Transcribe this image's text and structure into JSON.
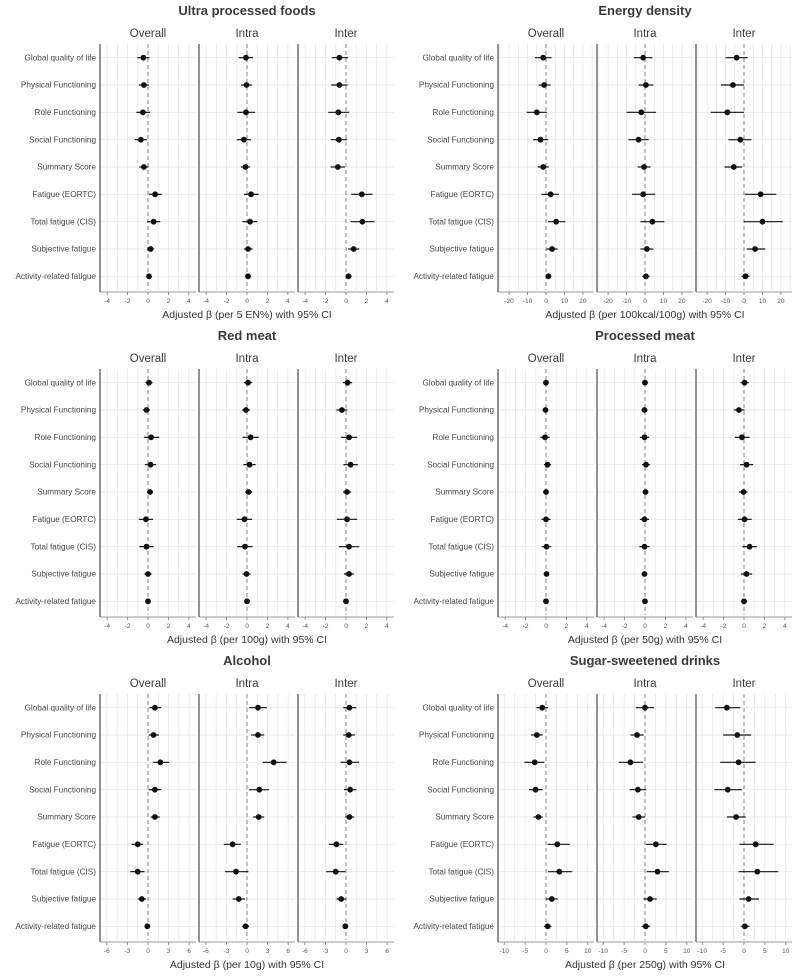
{
  "page": {
    "background": "#ffffff"
  },
  "categories": [
    "Global quality of life",
    "Physical Functioning",
    "Role Functioning",
    "Social Functioning",
    "Summary Score",
    "Fatigue (EORTC)",
    "Total fatigue (CIS)",
    "Subjective fatigue",
    "Activity-related fatigue"
  ],
  "panel_names": [
    "Overall",
    "Intra",
    "Inter"
  ],
  "colors": {
    "point": "#111111",
    "ci_line": "#111111",
    "grid": "#e3e3e3",
    "zero_line": "#8c8c8c",
    "spine": "#4a4a4a",
    "axis": "#777777",
    "text": "#3b3b3b",
    "tick_text": "#555555"
  },
  "chart_data": [
    {
      "type": "scatter",
      "subtype": "forest-plot",
      "title": "Ultra processed foods",
      "xlabel": "Adjusted β (per 5 EN%) with 95% CI",
      "xlim": [
        -4.7,
        4.7
      ],
      "xticks": [
        -4,
        -2,
        0,
        2,
        4
      ],
      "minor_step": 1,
      "zero_line": 0,
      "panels": [
        {
          "name": "Overall",
          "rows": [
            [
              -0.45,
              -1.05,
              0.15
            ],
            [
              -0.4,
              -0.9,
              0.1
            ],
            [
              -0.5,
              -1.15,
              0.2
            ],
            [
              -0.7,
              -1.3,
              -0.1
            ],
            [
              -0.4,
              -0.85,
              0.05
            ],
            [
              0.7,
              0.1,
              1.35
            ],
            [
              0.55,
              -0.1,
              1.2
            ],
            [
              0.25,
              -0.1,
              0.6
            ],
            [
              0.1,
              -0.1,
              0.3
            ]
          ]
        },
        {
          "name": "Intra",
          "rows": [
            [
              -0.1,
              -0.8,
              0.6
            ],
            [
              -0.05,
              -0.6,
              0.5
            ],
            [
              -0.1,
              -0.95,
              0.8
            ],
            [
              -0.3,
              -1.0,
              0.4
            ],
            [
              -0.15,
              -0.6,
              0.3
            ],
            [
              0.4,
              -0.3,
              1.15
            ],
            [
              0.3,
              -0.45,
              1.0
            ],
            [
              0.1,
              -0.3,
              0.55
            ],
            [
              0.1,
              -0.15,
              0.3
            ]
          ]
        },
        {
          "name": "Inter",
          "rows": [
            [
              -0.65,
              -1.4,
              0.2
            ],
            [
              -0.65,
              -1.45,
              0.15
            ],
            [
              -0.75,
              -1.75,
              0.3
            ],
            [
              -0.7,
              -1.5,
              0.1
            ],
            [
              -0.8,
              -1.5,
              -0.1
            ],
            [
              1.55,
              0.5,
              2.6
            ],
            [
              1.6,
              0.45,
              2.8
            ],
            [
              0.75,
              0.2,
              1.3
            ],
            [
              0.25,
              -0.05,
              0.55
            ]
          ]
        }
      ]
    },
    {
      "type": "scatter",
      "subtype": "forest-plot",
      "title": "Energy density",
      "xlabel": "Adjusted β (per 100kcal/100g) with 95% CI",
      "xlim": [
        -26,
        26
      ],
      "xticks": [
        -20,
        -10,
        0,
        10,
        20
      ],
      "minor_step": 5,
      "zero_line": 0,
      "panels": [
        {
          "name": "Overall",
          "rows": [
            [
              -1.5,
              -6,
              3
            ],
            [
              -1,
              -4,
              2.5
            ],
            [
              -5,
              -10.5,
              0.5
            ],
            [
              -3,
              -7,
              1.2
            ],
            [
              -1.5,
              -4.5,
              1.5
            ],
            [
              2.5,
              -2.5,
              7
            ],
            [
              5.5,
              1,
              10.5
            ],
            [
              3.3,
              0.3,
              6.3
            ],
            [
              1.3,
              0,
              2.8
            ]
          ]
        },
        {
          "name": "Intra",
          "rows": [
            [
              -1,
              -6,
              4
            ],
            [
              0.5,
              -3.5,
              4.5
            ],
            [
              -2,
              -10,
              6
            ],
            [
              -3.5,
              -9,
              2
            ],
            [
              -0.5,
              -4,
              3
            ],
            [
              -1,
              -7,
              5.5
            ],
            [
              4,
              -2.5,
              10.5
            ],
            [
              1,
              -2.5,
              4.5
            ],
            [
              0.5,
              -1.5,
              2.5
            ]
          ]
        },
        {
          "name": "Inter",
          "rows": [
            [
              -4,
              -10,
              2
            ],
            [
              -6,
              -12.5,
              0
            ],
            [
              -9,
              -18,
              0
            ],
            [
              -2,
              -8.5,
              4
            ],
            [
              -5.5,
              -10.5,
              -1
            ],
            [
              9,
              0.5,
              17.5
            ],
            [
              10,
              0,
              21
            ],
            [
              6,
              1.5,
              11.5
            ],
            [
              0.8,
              -1.3,
              3
            ]
          ]
        }
      ]
    },
    {
      "type": "scatter",
      "subtype": "forest-plot",
      "title": "Red meat",
      "xlabel": "Adjusted β (per 100g) with 95% CI",
      "xlim": [
        -4.7,
        4.7
      ],
      "xticks": [
        -4,
        -2,
        0,
        2,
        4
      ],
      "minor_step": 1,
      "zero_line": 0,
      "panels": [
        {
          "name": "Overall",
          "rows": [
            [
              0.1,
              -0.25,
              0.45
            ],
            [
              -0.15,
              -0.5,
              0.2
            ],
            [
              0.3,
              -0.4,
              1.1
            ],
            [
              0.25,
              -0.3,
              0.8
            ],
            [
              0.2,
              -0.1,
              0.5
            ],
            [
              -0.2,
              -0.9,
              0.5
            ],
            [
              -0.15,
              -0.85,
              0.55
            ],
            [
              0,
              -0.35,
              0.35
            ],
            [
              0,
              -0.2,
              0.2
            ]
          ]
        },
        {
          "name": "Intra",
          "rows": [
            [
              0.1,
              -0.3,
              0.5
            ],
            [
              -0.1,
              -0.5,
              0.3
            ],
            [
              0.35,
              -0.45,
              1.15
            ],
            [
              0.25,
              -0.35,
              0.85
            ],
            [
              0.15,
              -0.2,
              0.5
            ],
            [
              -0.25,
              -1.0,
              0.5
            ],
            [
              -0.2,
              -0.95,
              0.55
            ],
            [
              -0.05,
              -0.45,
              0.35
            ],
            [
              0,
              -0.2,
              0.2
            ]
          ]
        },
        {
          "name": "Inter",
          "rows": [
            [
              0.15,
              -0.3,
              0.6
            ],
            [
              -0.4,
              -0.95,
              0.15
            ],
            [
              0.3,
              -0.5,
              1.1
            ],
            [
              0.45,
              -0.25,
              1.15
            ],
            [
              0.1,
              -0.3,
              0.5
            ],
            [
              0.1,
              -0.9,
              1.1
            ],
            [
              0.3,
              -0.7,
              1.3
            ],
            [
              0.3,
              -0.2,
              0.8
            ],
            [
              0,
              -0.25,
              0.25
            ]
          ]
        }
      ]
    },
    {
      "type": "scatter",
      "subtype": "forest-plot",
      "title": "Processed meat",
      "xlabel": "Adjusted β (per 50g) with 95% CI",
      "xlim": [
        -4.7,
        4.7
      ],
      "xticks": [
        -4,
        -2,
        0,
        2,
        4
      ],
      "minor_step": 1,
      "zero_line": 0,
      "panels": [
        {
          "name": "Overall",
          "rows": [
            [
              0,
              -0.25,
              0.25
            ],
            [
              -0.05,
              -0.3,
              0.2
            ],
            [
              -0.1,
              -0.55,
              0.35
            ],
            [
              0.15,
              -0.2,
              0.5
            ],
            [
              0,
              -0.2,
              0.2
            ],
            [
              0,
              -0.45,
              0.45
            ],
            [
              0.05,
              -0.4,
              0.5
            ],
            [
              0.05,
              -0.2,
              0.3
            ],
            [
              0,
              -0.15,
              0.15
            ]
          ]
        },
        {
          "name": "Intra",
          "rows": [
            [
              0,
              -0.3,
              0.3
            ],
            [
              -0.05,
              -0.35,
              0.25
            ],
            [
              -0.05,
              -0.5,
              0.4
            ],
            [
              0.1,
              -0.3,
              0.5
            ],
            [
              0.05,
              -0.2,
              0.3
            ],
            [
              -0.05,
              -0.5,
              0.4
            ],
            [
              -0.05,
              -0.55,
              0.45
            ],
            [
              -0.05,
              -0.3,
              0.2
            ],
            [
              0,
              -0.15,
              0.15
            ]
          ]
        },
        {
          "name": "Inter",
          "rows": [
            [
              0.05,
              -0.35,
              0.45
            ],
            [
              -0.5,
              -1.0,
              0.05
            ],
            [
              -0.2,
              -0.9,
              0.55
            ],
            [
              0.25,
              -0.4,
              0.9
            ],
            [
              -0.05,
              -0.5,
              0.35
            ],
            [
              0.05,
              -0.6,
              0.75
            ],
            [
              0.55,
              -0.15,
              1.25
            ],
            [
              0.25,
              -0.3,
              0.8
            ],
            [
              0,
              -0.25,
              0.3
            ]
          ]
        }
      ]
    },
    {
      "type": "scatter",
      "subtype": "forest-plot",
      "title": "Alcohol",
      "xlabel": "Adjusted β (per 10g) with 95% CI",
      "xlim": [
        -7,
        7
      ],
      "xticks": [
        -6,
        -3,
        0,
        3,
        6
      ],
      "minor_step": 1.5,
      "zero_line": 0,
      "panels": [
        {
          "name": "Overall",
          "rows": [
            [
              1.0,
              0.2,
              1.9
            ],
            [
              0.8,
              0.1,
              1.6
            ],
            [
              1.8,
              0.7,
              3.1
            ],
            [
              1.0,
              0.1,
              1.9
            ],
            [
              1.0,
              0.4,
              1.7
            ],
            [
              -1.5,
              -2.4,
              -0.7
            ],
            [
              -1.5,
              -2.6,
              -0.5
            ],
            [
              -0.9,
              -1.5,
              -0.3
            ],
            [
              -0.1,
              -0.4,
              0.2
            ]
          ]
        },
        {
          "name": "Intra",
          "rows": [
            [
              1.6,
              0.3,
              2.9
            ],
            [
              1.6,
              0.6,
              2.5
            ],
            [
              3.9,
              2.3,
              5.8
            ],
            [
              1.8,
              0.3,
              3.2
            ],
            [
              1.7,
              0.9,
              2.5
            ],
            [
              -2.1,
              -3.4,
              -0.9
            ],
            [
              -1.6,
              -3.2,
              0.2
            ],
            [
              -1.2,
              -2.1,
              -0.3
            ],
            [
              -0.2,
              -0.7,
              0.3
            ]
          ]
        },
        {
          "name": "Inter",
          "rows": [
            [
              0.5,
              -0.4,
              1.5
            ],
            [
              0.4,
              -0.4,
              1.3
            ],
            [
              0.5,
              -0.8,
              1.9
            ],
            [
              0.6,
              -0.3,
              1.5
            ],
            [
              0.5,
              -0.1,
              1.2
            ],
            [
              -1.4,
              -2.5,
              -0.4
            ],
            [
              -1.5,
              -2.9,
              -0.1
            ],
            [
              -0.7,
              -1.4,
              0.0
            ],
            [
              -0.1,
              -0.4,
              0.3
            ]
          ]
        }
      ]
    },
    {
      "type": "scatter",
      "subtype": "forest-plot",
      "title": "Sugar-sweetened drinks",
      "xlabel": "Adjusted β (per 250g) with 95% CI",
      "xlim": [
        -11.5,
        11.5
      ],
      "xticks": [
        -10,
        -5,
        0,
        5,
        10
      ],
      "minor_step": 2.5,
      "zero_line": 0,
      "panels": [
        {
          "name": "Overall",
          "rows": [
            [
              -0.9,
              -2.3,
              0.5
            ],
            [
              -2.2,
              -3.6,
              -0.8
            ],
            [
              -2.7,
              -5.2,
              -0.4
            ],
            [
              -2.5,
              -4.1,
              -0.8
            ],
            [
              -1.8,
              -3.0,
              -0.8
            ],
            [
              2.7,
              0.4,
              5.7
            ],
            [
              3.2,
              0.5,
              6.3
            ],
            [
              1.4,
              0.0,
              2.8
            ],
            [
              0.4,
              -0.5,
              1.3
            ]
          ]
        },
        {
          "name": "Intra",
          "rows": [
            [
              0.0,
              -2.2,
              2.2
            ],
            [
              -1.9,
              -3.5,
              -0.3
            ],
            [
              -3.5,
              -6.3,
              -0.5
            ],
            [
              -1.7,
              -3.7,
              0.3
            ],
            [
              -1.5,
              -3.0,
              0.0
            ],
            [
              2.6,
              0.2,
              5.2
            ],
            [
              3.0,
              0.4,
              5.7
            ],
            [
              1.2,
              -0.4,
              2.8
            ],
            [
              0.2,
              -0.8,
              1.2
            ]
          ]
        },
        {
          "name": "Inter",
          "rows": [
            [
              -4.1,
              -6.9,
              -0.9
            ],
            [
              -1.6,
              -5.0,
              1.7
            ],
            [
              -1.3,
              -5.7,
              2.8
            ],
            [
              -3.9,
              -7.1,
              -0.5
            ],
            [
              -1.9,
              -4.1,
              0.4
            ],
            [
              2.8,
              -1.1,
              7.1
            ],
            [
              3.2,
              -1.3,
              8.2
            ],
            [
              1.1,
              -1.1,
              3.6
            ],
            [
              0.2,
              -0.8,
              1.3
            ]
          ]
        }
      ]
    }
  ]
}
